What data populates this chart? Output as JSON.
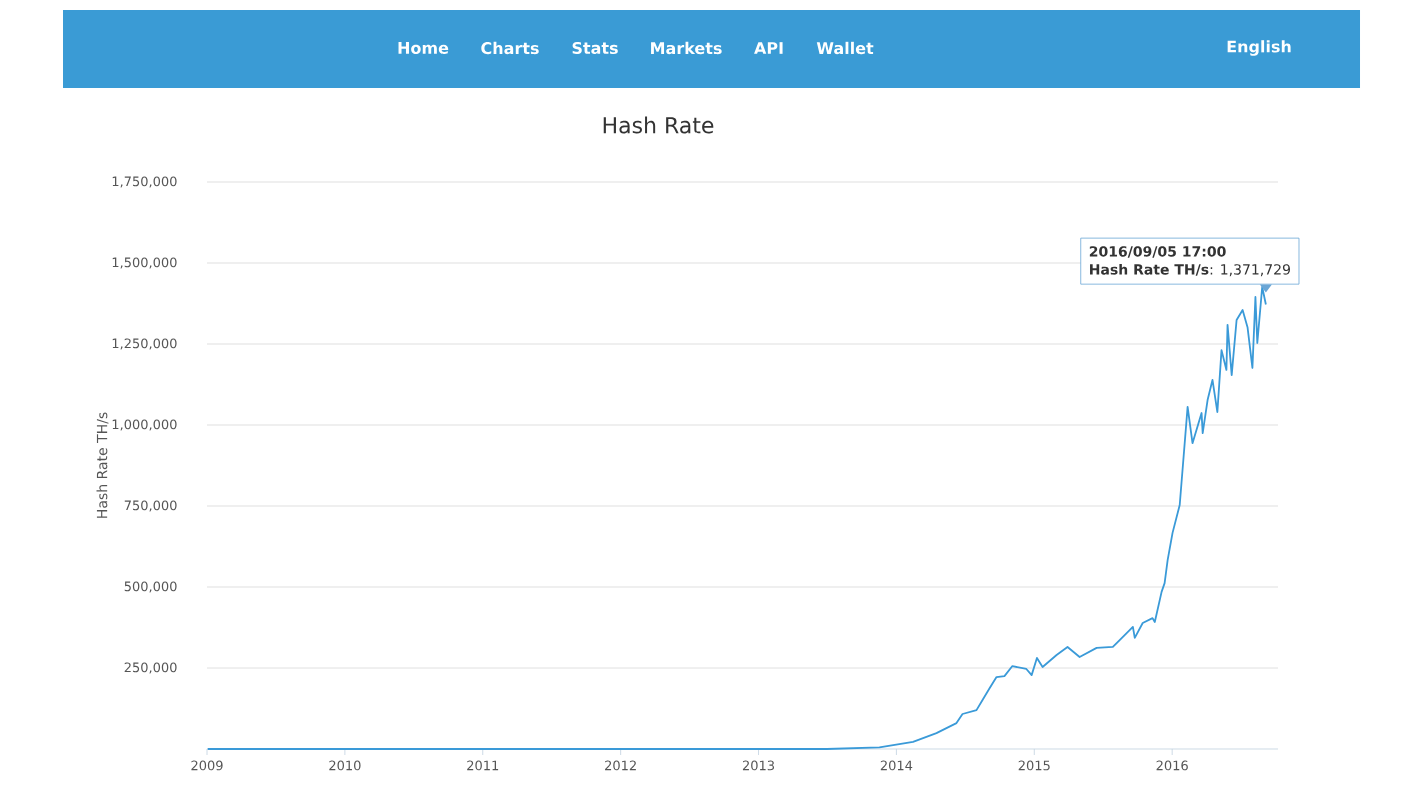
{
  "chart_data": {
    "type": "line",
    "title": "Hash Rate",
    "ylabel": "Hash Rate TH/s",
    "x": [
      "2009-01-03",
      "2010-01-01",
      "2011-01-01",
      "2012-01-01",
      "2013-01-01",
      "2013-07-01",
      "2013-11-17",
      "2014-02-14",
      "2014-04-17",
      "2014-06-09",
      "2014-06-25",
      "2014-08-01",
      "2014-08-17",
      "2014-09-05",
      "2014-09-23",
      "2014-10-14",
      "2014-11-04",
      "2014-12-11",
      "2014-12-25",
      "2015-01-08",
      "2015-01-23",
      "2015-03-01",
      "2015-03-30",
      "2015-05-01",
      "2015-06-15",
      "2015-07-28",
      "2015-08-15",
      "2015-09-19",
      "2015-09-24",
      "2015-10-15",
      "2015-11-10",
      "2015-11-16",
      "2015-12-04",
      "2015-12-12",
      "2015-12-20",
      "2016-01-02",
      "2016-01-21",
      "2016-02-11",
      "2016-02-24",
      "2016-03-19",
      "2016-03-22",
      "2016-04-04",
      "2016-04-17",
      "2016-04-30",
      "2016-05-11",
      "2016-05-24",
      "2016-05-27",
      "2016-06-07",
      "2016-06-20",
      "2016-07-06",
      "2016-07-19",
      "2016-08-01",
      "2016-08-09",
      "2016-08-14",
      "2016-08-27",
      "2016-09-05T17:00"
    ],
    "series": [
      {
        "color": "#3a9ad8",
        "values": [
          0,
          0,
          0,
          0,
          0,
          0,
          5000,
          22000,
          49000,
          80000,
          108000,
          120000,
          151000,
          188000,
          222000,
          225000,
          256000,
          247000,
          228000,
          281000,
          253000,
          290000,
          315000,
          284000,
          312000,
          315000,
          336000,
          377000,
          343000,
          389000,
          404000,
          392000,
          485000,
          512000,
          583000,
          667000,
          753000,
          1056000,
          944000,
          1037000,
          975000,
          1077000,
          1139000,
          1040000,
          1231000,
          1170000,
          1309000,
          1154000,
          1324000,
          1355000,
          1302000,
          1176000,
          1395000,
          1253000,
          1426000,
          1371729
        ]
      }
    ],
    "xlim": [
      "2009-01-01",
      "2016-10-08"
    ],
    "xticks": [
      "2009",
      "2010",
      "2011",
      "2012",
      "2013",
      "2014",
      "2015",
      "2016"
    ],
    "ylim": [
      0,
      1750000
    ],
    "yticks": [
      {
        "value": 250000,
        "label": "250,000"
      },
      {
        "value": 500000,
        "label": "500,000"
      },
      {
        "value": 750000,
        "label": "750,000"
      },
      {
        "value": 1000000,
        "label": "1,000,000"
      },
      {
        "value": 1250000,
        "label": "1,250,000"
      },
      {
        "value": 1500000,
        "label": "1,500,000"
      },
      {
        "value": 1750000,
        "label": "1,750,000"
      }
    ],
    "grid": "y",
    "annotations": [
      "2016/09/05 17:00",
      "**Hash Rate TH/s**: 1,371,729",
      "Home",
      "Charts",
      "Stats",
      "Markets",
      "API",
      "Wallet",
      "English"
    ]
  }
}
